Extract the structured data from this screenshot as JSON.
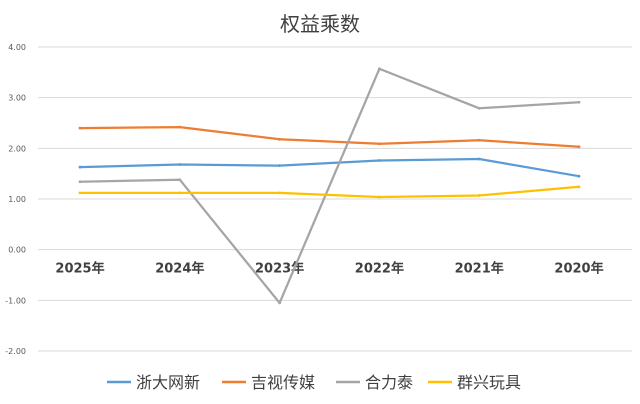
{
  "chart_data": {
    "type": "line",
    "title": "权益乘数",
    "xlabel": "",
    "ylabel": "",
    "ylim": [
      -2.0,
      4.0
    ],
    "yticks": [
      4.0,
      3.0,
      2.0,
      1.0,
      0.0,
      -1.0,
      -2.0
    ],
    "ytick_labels": [
      "4.00",
      "3.00",
      "2.00",
      "1.00",
      "0.00",
      "-1.00",
      "-2.00"
    ],
    "categories": [
      "2025年",
      "2024年",
      "2023年",
      "2022年",
      "2021年",
      "2020年"
    ],
    "grid": true,
    "legend_position": "bottom",
    "series": [
      {
        "name": "浙大网新",
        "color": "#5B9BD5",
        "values": [
          1.63,
          1.68,
          1.66,
          1.76,
          1.79,
          1.45
        ]
      },
      {
        "name": "吉视传媒",
        "color": "#ED7D31",
        "values": [
          2.4,
          2.42,
          2.18,
          2.09,
          2.16,
          2.03
        ]
      },
      {
        "name": "合力泰",
        "color": "#A5A5A5",
        "values": [
          1.34,
          1.38,
          -1.05,
          3.57,
          2.79,
          2.91
        ]
      },
      {
        "name": "群兴玩具",
        "color": "#FFC000",
        "values": [
          1.12,
          1.12,
          1.12,
          1.04,
          1.07,
          1.24
        ]
      }
    ]
  }
}
